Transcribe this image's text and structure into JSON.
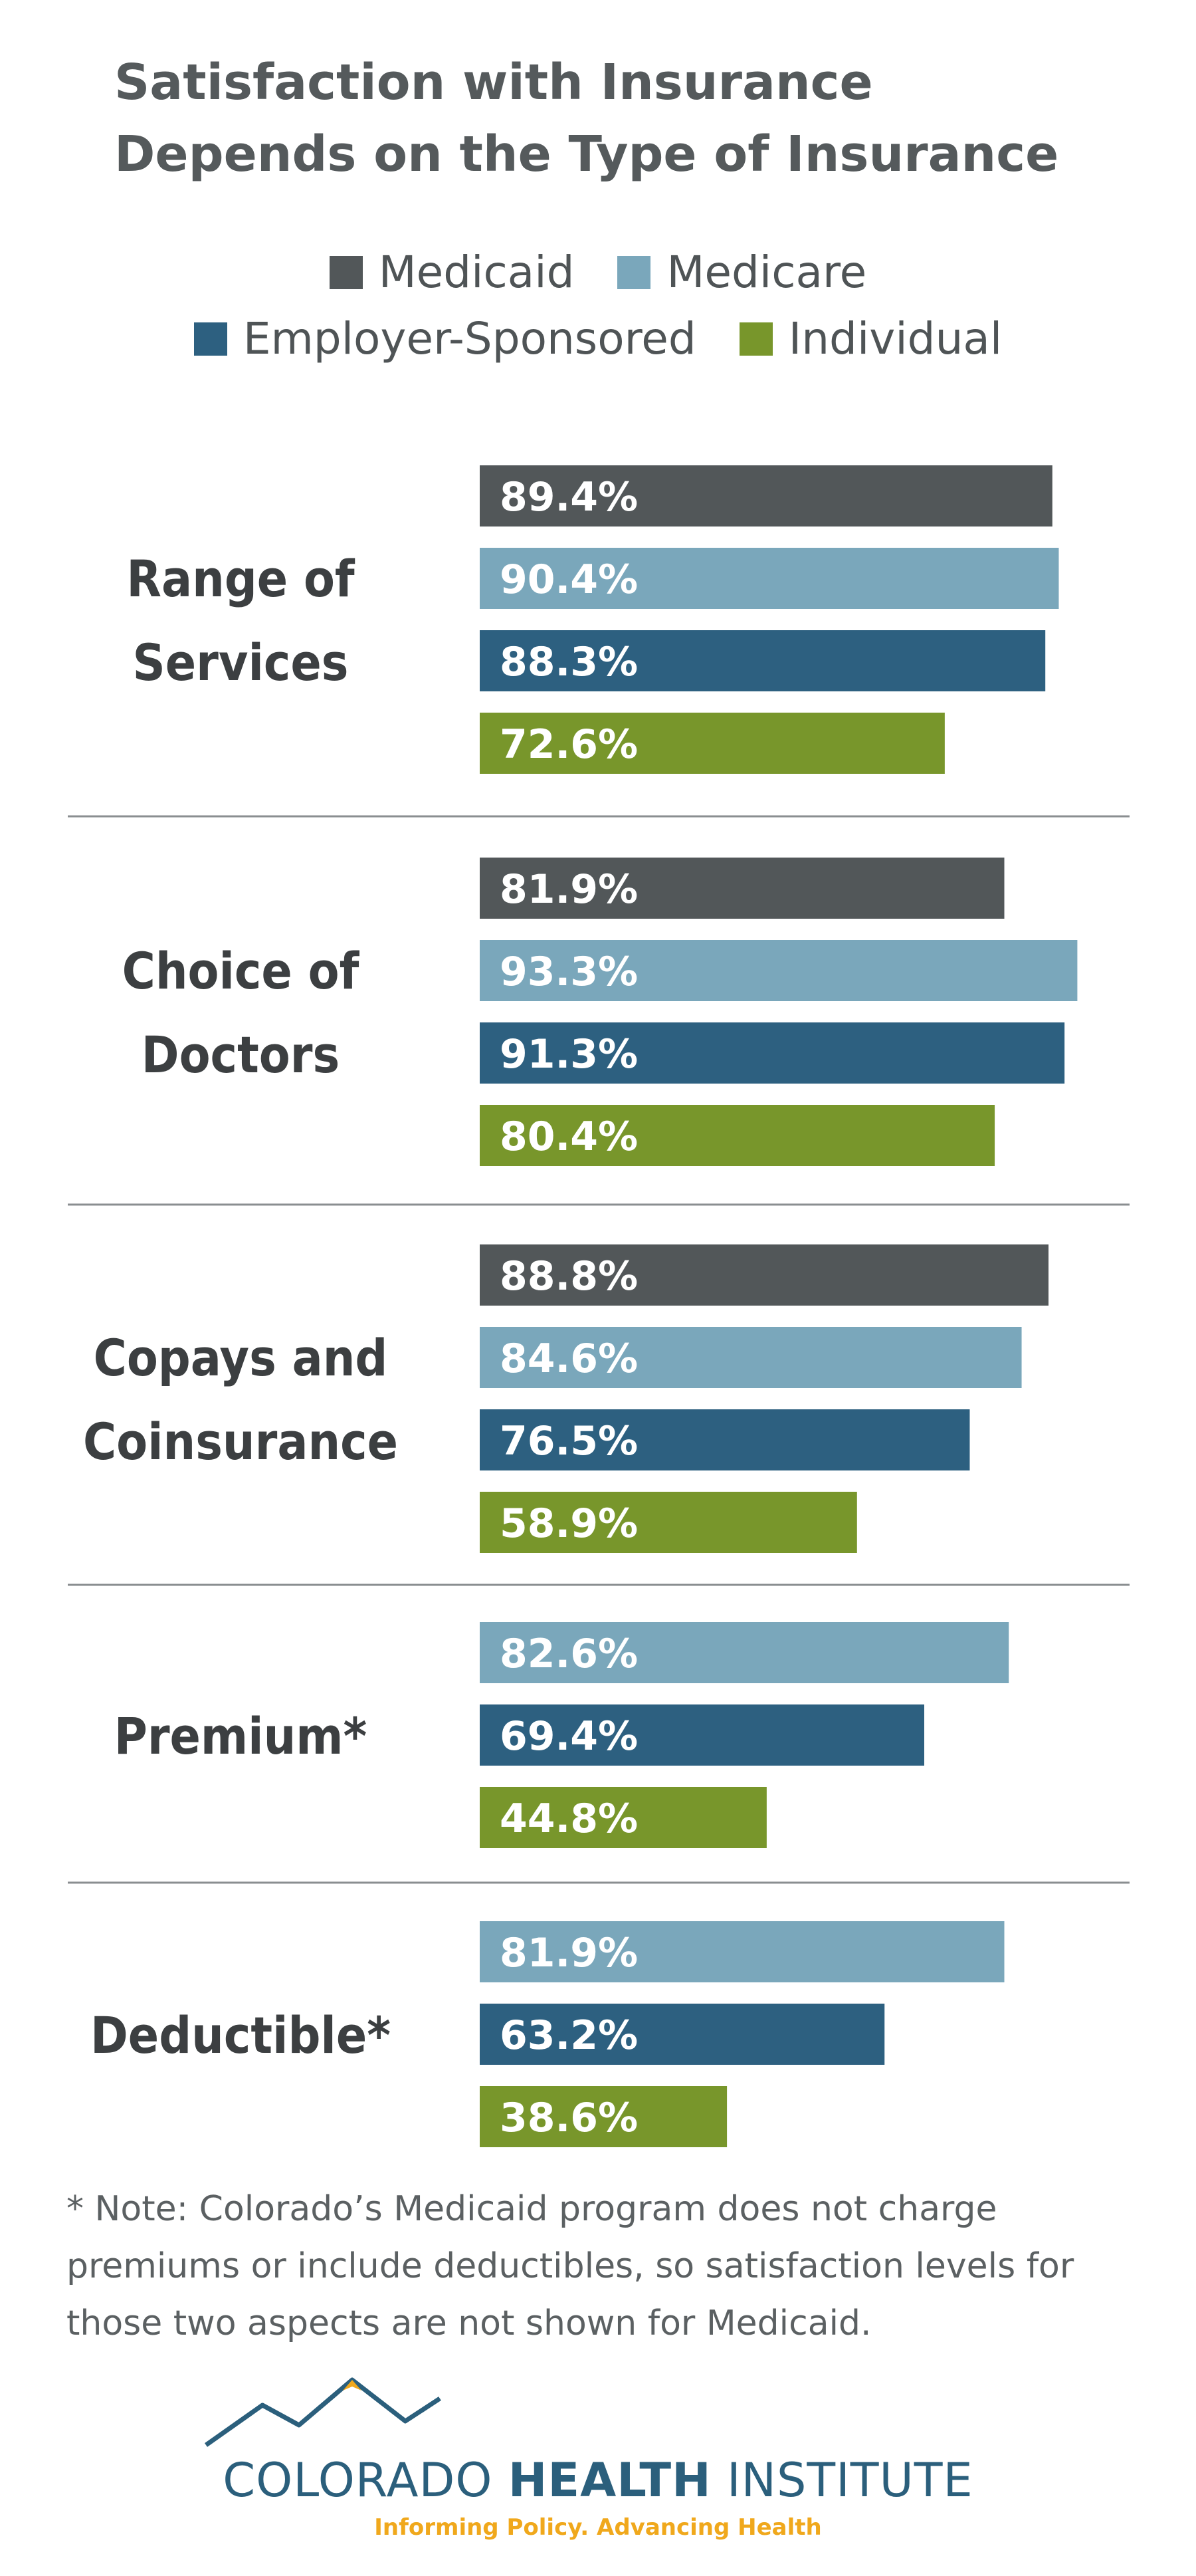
{
  "title_lines": [
    "Satisfaction with Insurance",
    "Depends on the Type of Insurance"
  ],
  "legend": [
    {
      "label": "Medicaid",
      "color": "#525759"
    },
    {
      "label": "Medicare",
      "color": "#7aa7bb"
    },
    {
      "label": "Employer-Sponsored",
      "color": "#2d6080"
    },
    {
      "label": "Individual",
      "color": "#78962b"
    }
  ],
  "chart_data": {
    "type": "bar",
    "orientation": "horizontal",
    "series_colors": {
      "Medicaid": "#525759",
      "Medicare": "#7aa7bb",
      "Employer-Sponsored": "#2d6080",
      "Individual": "#78962b"
    },
    "groups": [
      {
        "label_lines": [
          "Range of",
          "Services"
        ],
        "bars": [
          {
            "series": "Medicaid",
            "value": 89.4,
            "label": "89.4%"
          },
          {
            "series": "Medicare",
            "value": 90.4,
            "label": "90.4%"
          },
          {
            "series": "Employer-Sponsored",
            "value": 88.3,
            "label": "88.3%"
          },
          {
            "series": "Individual",
            "value": 72.6,
            "label": "72.6%"
          }
        ]
      },
      {
        "label_lines": [
          "Choice of",
          "Doctors"
        ],
        "bars": [
          {
            "series": "Medicaid",
            "value": 81.9,
            "label": "81.9%"
          },
          {
            "series": "Medicare",
            "value": 93.3,
            "label": "93.3%"
          },
          {
            "series": "Employer-Sponsored",
            "value": 91.3,
            "label": "91.3%"
          },
          {
            "series": "Individual",
            "value": 80.4,
            "label": "80.4%"
          }
        ]
      },
      {
        "label_lines": [
          "Copays and",
          "Coinsurance"
        ],
        "bars": [
          {
            "series": "Medicaid",
            "value": 88.8,
            "label": "88.8%"
          },
          {
            "series": "Medicare",
            "value": 84.6,
            "label": "84.6%"
          },
          {
            "series": "Employer-Sponsored",
            "value": 76.5,
            "label": "76.5%"
          },
          {
            "series": "Individual",
            "value": 58.9,
            "label": "58.9%"
          }
        ]
      },
      {
        "label_lines": [
          "Premium*"
        ],
        "bars": [
          {
            "series": "Medicare",
            "value": 82.6,
            "label": "82.6%"
          },
          {
            "series": "Employer-Sponsored",
            "value": 69.4,
            "label": "69.4%"
          },
          {
            "series": "Individual",
            "value": 44.8,
            "label": "44.8%"
          }
        ]
      },
      {
        "label_lines": [
          "Deductible*"
        ],
        "bars": [
          {
            "series": "Medicare",
            "value": 81.9,
            "label": "81.9%"
          },
          {
            "series": "Employer-Sponsored",
            "value": 63.2,
            "label": "63.2%"
          },
          {
            "series": "Individual",
            "value": 38.6,
            "label": "38.6%"
          }
        ]
      }
    ]
  },
  "note_lines": [
    "* Note: Colorado’s Medicaid program does not charge",
    "premiums or include deductibles, so satisfaction levels for",
    "those two aspects are not shown for Medicaid."
  ],
  "logo": {
    "name_light": "COLORADO ",
    "name_bold": "HEALTH",
    "name_end": " INSTITUTE",
    "tagline": "Informing Policy. Advancing Health",
    "colors": {
      "primary": "#2b5f7c",
      "accent": "#f0a81c"
    }
  }
}
